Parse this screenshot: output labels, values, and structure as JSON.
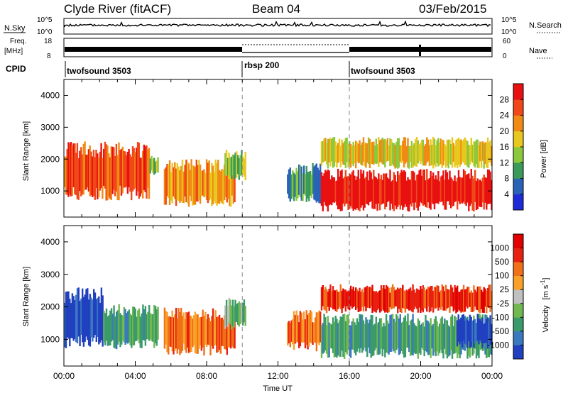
{
  "header": {
    "title": "Clyde River (fitACF)",
    "beam": "Beam 04",
    "date": "03/Feb/2015"
  },
  "summary": {
    "nsky_label": "N.Sky",
    "nsky_ticks": [
      "10^5",
      "10^0"
    ],
    "nsearch_label": "N.Search",
    "nsearch_ticks": [
      "10^5",
      "10^0"
    ],
    "freq_label_1": "Freq.",
    "freq_label_2": "[MHz]",
    "freq_ticks": [
      "18",
      "8"
    ],
    "nave_label": "Nave",
    "nave_ticks": [
      "60",
      "0"
    ],
    "cpid_label": "CPID",
    "cpid_segments": [
      {
        "name": "twofsound 3503",
        "start_hr": 0,
        "end_hr": 10
      },
      {
        "name": "rbsp 200",
        "start_hr": 10,
        "end_hr": 16
      },
      {
        "name": "twofsound 3503",
        "start_hr": 16,
        "end_hr": 24
      }
    ]
  },
  "chart_data": [
    {
      "type": "heatmap",
      "title": "",
      "xlabel": "",
      "ylabel": "Slant Range [km]",
      "xlim": [
        0,
        24
      ],
      "ylim": [
        180,
        4500
      ],
      "yticks": [
        "1000",
        "2000",
        "3000",
        "4000"
      ],
      "colorbar": {
        "label": "Power [dB]",
        "ticks": [
          "4",
          "8",
          "12",
          "16",
          "20",
          "24",
          "28"
        ],
        "colors": [
          "#1f2bd6",
          "#2a62b8",
          "#3a9a5a",
          "#8bc83c",
          "#e8c81e",
          "#f08a14",
          "#f04818",
          "#e81010"
        ]
      },
      "regions": [
        {
          "t0": 0.0,
          "t1": 4.8,
          "r0": 700,
          "r1": 2600,
          "level": 6
        },
        {
          "t0": 4.8,
          "t1": 5.3,
          "r0": 1500,
          "r1": 2100,
          "level": 3
        },
        {
          "t0": 5.6,
          "t1": 9.6,
          "r0": 500,
          "r1": 2000,
          "level": 5
        },
        {
          "t0": 9.0,
          "t1": 10.2,
          "r0": 1300,
          "r1": 2300,
          "level": 3
        },
        {
          "t0": 12.5,
          "t1": 14.4,
          "r0": 600,
          "r1": 1900,
          "level": 2
        },
        {
          "t0": 14.4,
          "t1": 24.0,
          "r0": 350,
          "r1": 1700,
          "level": 7
        },
        {
          "t0": 14.4,
          "t1": 24.0,
          "r0": 1700,
          "r1": 2700,
          "level": 4
        }
      ]
    },
    {
      "type": "heatmap",
      "title": "",
      "xlabel": "Time UT",
      "ylabel": "Slant Range [km]",
      "xlim": [
        0,
        24
      ],
      "ylim": [
        180,
        4500
      ],
      "xticks": [
        "00:00",
        "04:00",
        "08:00",
        "12:00",
        "16:00",
        "20:00",
        "00:00"
      ],
      "yticks": [
        "1000",
        "2000",
        "3000",
        "4000"
      ],
      "colorbar": {
        "label": "Velocity",
        "unit": "[m s",
        "unit_exp": "-1",
        "unit_close": "]",
        "ticks": [
          "1000",
          "500",
          "100",
          "25",
          "-25",
          "-100",
          "-500",
          "-1000"
        ],
        "colors": [
          "#2040c0",
          "#3a78c0",
          "#3a9a6a",
          "#70b850",
          "#c0c0c0",
          "#f8a028",
          "#f07018",
          "#e82010",
          "#e00000"
        ]
      },
      "regions": [
        {
          "t0": 0.0,
          "t1": 2.2,
          "r0": 700,
          "r1": 2600,
          "level": 0
        },
        {
          "t0": 2.2,
          "t1": 5.3,
          "r0": 700,
          "r1": 2100,
          "level": 2
        },
        {
          "t0": 5.6,
          "t1": 9.6,
          "r0": 500,
          "r1": 2000,
          "level": 6
        },
        {
          "t0": 9.0,
          "t1": 10.2,
          "r0": 1300,
          "r1": 2300,
          "level": 3
        },
        {
          "t0": 12.5,
          "t1": 14.4,
          "r0": 600,
          "r1": 1900,
          "level": 6
        },
        {
          "t0": 14.4,
          "t1": 24.0,
          "r0": 400,
          "r1": 1800,
          "level": 2
        },
        {
          "t0": 14.4,
          "t1": 24.0,
          "r0": 1800,
          "r1": 2700,
          "level": 7
        },
        {
          "t0": 22.0,
          "t1": 24.0,
          "r0": 700,
          "r1": 1800,
          "level": 0
        }
      ]
    }
  ]
}
